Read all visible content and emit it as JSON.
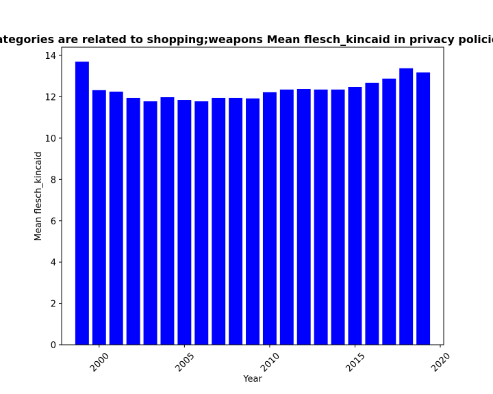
{
  "chart_data": {
    "type": "bar",
    "title": "Categories are related to shopping;weapons Mean flesch_kincaid in privacy policies",
    "xlabel": "Year",
    "ylabel": "Mean flesch_kincaid",
    "x": [
      1999,
      2000,
      2001,
      2002,
      2003,
      2004,
      2005,
      2006,
      2007,
      2008,
      2009,
      2010,
      2011,
      2012,
      2013,
      2014,
      2015,
      2016,
      2017,
      2018,
      2019
    ],
    "values": [
      13.7,
      12.32,
      12.25,
      11.95,
      11.78,
      11.98,
      11.85,
      11.78,
      11.95,
      11.95,
      11.92,
      12.22,
      12.35,
      12.38,
      12.35,
      12.35,
      12.48,
      12.68,
      12.88,
      13.38,
      13.18
    ],
    "xlim": [
      1997.8,
      2020.2
    ],
    "ylim": [
      0,
      14.4
    ],
    "xticks": [
      2000,
      2005,
      2010,
      2015,
      2020
    ],
    "yticks": [
      0,
      2,
      4,
      6,
      8,
      10,
      12,
      14
    ],
    "bar_color": "#0000ff",
    "grid": false,
    "legend": "none"
  }
}
